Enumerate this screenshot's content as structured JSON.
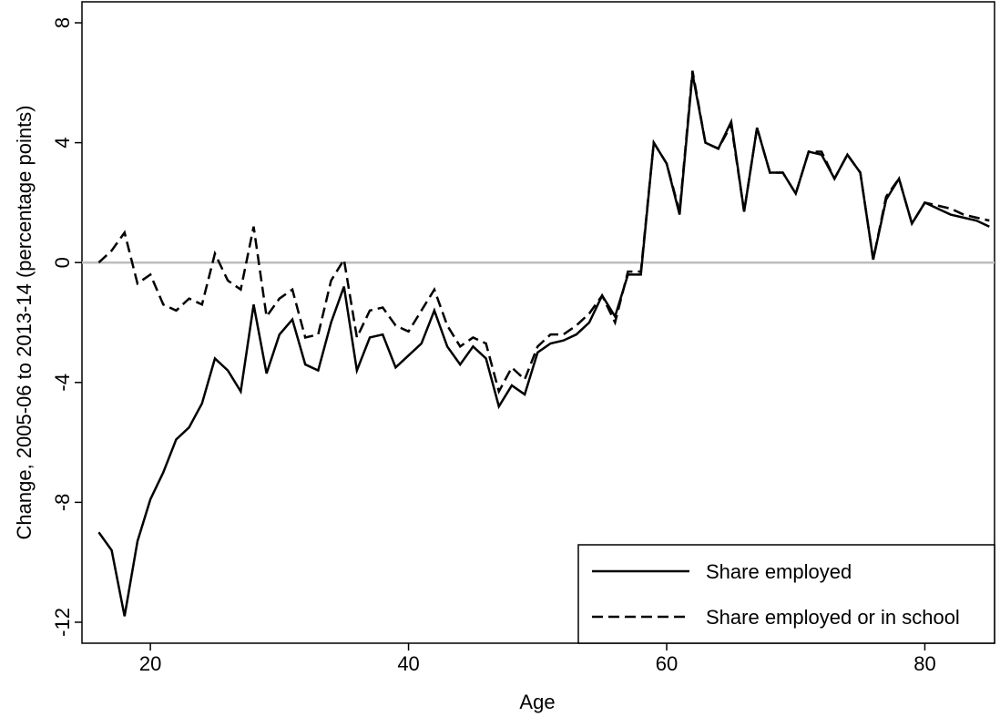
{
  "chart_data": {
    "type": "line",
    "x_label": "Age",
    "y_label": "Change, 2005-06 to 2013-14 (percentage points)",
    "x": [
      16,
      17,
      18,
      19,
      20,
      21,
      22,
      23,
      24,
      25,
      26,
      27,
      28,
      29,
      30,
      31,
      32,
      33,
      34,
      35,
      36,
      37,
      38,
      39,
      40,
      41,
      42,
      43,
      44,
      45,
      46,
      47,
      48,
      49,
      50,
      51,
      52,
      53,
      54,
      55,
      56,
      57,
      58,
      59,
      60,
      61,
      62,
      63,
      64,
      65,
      66,
      67,
      68,
      69,
      70,
      71,
      72,
      73,
      74,
      75,
      76,
      77,
      78,
      79,
      80,
      81,
      82,
      83,
      84,
      85
    ],
    "series": [
      {
        "name": "Share employed",
        "color": "#000000",
        "dash": "solid",
        "values": [
          -9.0,
          -9.6,
          -11.8,
          -9.3,
          -7.9,
          -7.0,
          -5.9,
          -5.5,
          -4.7,
          -3.2,
          -3.6,
          -4.3,
          -1.4,
          -3.7,
          -2.4,
          -1.9,
          -3.4,
          -3.6,
          -2.0,
          -0.8,
          -3.6,
          -2.5,
          -2.4,
          -3.5,
          -3.1,
          -2.7,
          -1.6,
          -2.8,
          -3.4,
          -2.8,
          -3.2,
          -4.8,
          -4.1,
          -4.4,
          -3.0,
          -2.7,
          -2.6,
          -2.4,
          -2.0,
          -1.1,
          -1.8,
          -0.4,
          -0.4,
          4.0,
          3.3,
          1.6,
          6.3,
          4.0,
          3.8,
          4.7,
          1.7,
          4.5,
          3.0,
          3.0,
          2.3,
          3.7,
          3.6,
          2.8,
          3.6,
          3.0,
          0.1,
          2.1,
          2.8,
          1.3,
          2.0,
          1.8,
          1.6,
          1.5,
          1.4,
          1.2
        ]
      },
      {
        "name": "Share employed or in school",
        "color": "#000000",
        "dash": "dashed",
        "values": [
          0.0,
          0.4,
          1.0,
          -0.7,
          -0.4,
          -1.4,
          -1.6,
          -1.2,
          -1.4,
          0.3,
          -0.6,
          -0.9,
          1.2,
          -1.8,
          -1.2,
          -0.9,
          -2.5,
          -2.4,
          -0.6,
          0.1,
          -2.5,
          -1.6,
          -1.5,
          -2.1,
          -2.3,
          -1.6,
          -0.9,
          -2.1,
          -2.8,
          -2.5,
          -2.7,
          -4.3,
          -3.5,
          -3.9,
          -2.8,
          -2.4,
          -2.4,
          -2.1,
          -1.7,
          -1.1,
          -2.0,
          -0.3,
          -0.3,
          4.0,
          3.3,
          1.7,
          6.4,
          4.0,
          3.8,
          4.6,
          1.7,
          4.5,
          3.0,
          3.0,
          2.3,
          3.7,
          3.7,
          2.8,
          3.6,
          3.0,
          0.1,
          2.2,
          2.8,
          1.3,
          2.0,
          1.9,
          1.8,
          1.6,
          1.5,
          1.4
        ]
      }
    ],
    "xlim": [
      14.7,
      85.4
    ],
    "xticks": [
      20,
      40,
      60,
      80
    ],
    "ylim": [
      -12.7,
      8.7
    ],
    "yticks": [
      -12,
      -8,
      -4,
      0,
      4,
      8
    ],
    "reference_line": 0,
    "reference_color": "#bdbdbd",
    "legend": "lower right"
  }
}
